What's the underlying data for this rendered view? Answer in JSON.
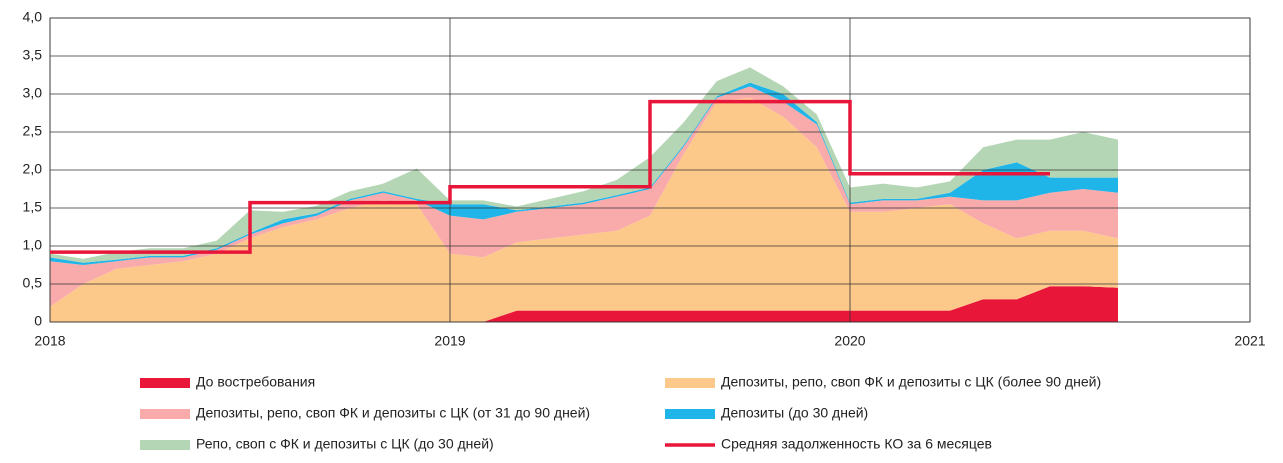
{
  "chart_data": {
    "type": "stacked-area",
    "x": [
      2018,
      2018.083,
      2018.167,
      2018.25,
      2018.333,
      2018.417,
      2018.5,
      2018.583,
      2018.667,
      2018.75,
      2018.833,
      2018.917,
      2019,
      2019.083,
      2019.167,
      2019.25,
      2019.333,
      2019.417,
      2019.5,
      2019.583,
      2019.667,
      2019.75,
      2019.833,
      2019.917,
      2020,
      2020.083,
      2020.167,
      2020.25,
      2020.333,
      2020.417,
      2020.5,
      2020.583,
      2020.67
    ],
    "series": [
      {
        "name": "До востребования",
        "color": "#e8173a",
        "values": [
          0,
          0,
          0,
          0,
          0,
          0,
          0,
          0,
          0,
          0,
          0,
          0,
          0,
          0,
          0.15,
          0.15,
          0.15,
          0.15,
          0.15,
          0.15,
          0.15,
          0.15,
          0.15,
          0.15,
          0.15,
          0.15,
          0.15,
          0.15,
          0.3,
          0.3,
          0.47,
          0.47,
          0.45
        ]
      },
      {
        "name": "Депозиты, репо, своп ФК и депозиты с ЦК (более 90 дней)",
        "color": "#fdc98a",
        "values": [
          0.2,
          0.5,
          0.7,
          0.75,
          0.8,
          0.9,
          1.1,
          1.25,
          1.35,
          1.5,
          1.6,
          1.55,
          0.9,
          0.85,
          0.9,
          0.95,
          1.0,
          1.05,
          1.25,
          2.05,
          2.75,
          2.8,
          2.55,
          2.15,
          1.3,
          1.3,
          1.35,
          1.4,
          1.0,
          0.8,
          0.73,
          0.73,
          0.65
        ]
      },
      {
        "name": "Депозиты, репо, своп ФК и депозиты с ЦК (от 31 до 90 дней)",
        "color": "#f9abab",
        "values": [
          0.6,
          0.25,
          0.1,
          0.1,
          0.05,
          0.05,
          0.05,
          0.05,
          0.05,
          0.1,
          0.1,
          0.05,
          0.5,
          0.5,
          0.4,
          0.4,
          0.4,
          0.45,
          0.35,
          0.1,
          0.05,
          0.15,
          0.2,
          0.3,
          0.1,
          0.15,
          0.1,
          0.1,
          0.3,
          0.5,
          0.5,
          0.55,
          0.6
        ]
      },
      {
        "name": "Депозиты (до 30 дней)",
        "color": "#1fb5e8",
        "values": [
          0.05,
          0.03,
          0.02,
          0.02,
          0.02,
          0.02,
          0.02,
          0.05,
          0.03,
          0.02,
          0.02,
          0.02,
          0.15,
          0.2,
          0.02,
          0.02,
          0.02,
          0.02,
          0.02,
          0.02,
          0.02,
          0.05,
          0.1,
          0.03,
          0.02,
          0.02,
          0.02,
          0.05,
          0.4,
          0.5,
          0.2,
          0.15,
          0.2
        ]
      },
      {
        "name": "Репо, своп с ФК и депозиты с ЦК (до 30 дней)",
        "color": "#b5d6b5",
        "values": [
          0.05,
          0.05,
          0.1,
          0.1,
          0.1,
          0.1,
          0.3,
          0.1,
          0.1,
          0.1,
          0.1,
          0.4,
          0.05,
          0.05,
          0.05,
          0.1,
          0.15,
          0.2,
          0.4,
          0.3,
          0.2,
          0.2,
          0.1,
          0.1,
          0.2,
          0.2,
          0.15,
          0.15,
          0.3,
          0.3,
          0.5,
          0.6,
          0.5
        ]
      },
      {
        "name": "Средняя задолженность КО за 6 месяцев",
        "color": "#e8173a",
        "kind": "line",
        "x": [
          2018,
          2018.5,
          2018.5,
          2019,
          2019,
          2019.5,
          2019.5,
          2020,
          2020,
          2020.5
        ],
        "values": [
          0.92,
          0.92,
          1.57,
          1.57,
          1.78,
          1.78,
          2.9,
          2.9,
          1.95,
          1.95
        ]
      }
    ],
    "xlim": [
      2018,
      2021
    ],
    "xticks": [
      2018,
      2019,
      2020,
      2021
    ],
    "ylim": [
      0,
      4
    ],
    "yticks": [
      0,
      {
        "value": 0.5,
        "label": "0,5"
      },
      {
        "value": 1,
        "label": "1,0"
      },
      {
        "value": 1.5,
        "label": "1,5"
      },
      {
        "value": 2,
        "label": "2,0"
      },
      {
        "value": 2.5,
        "label": "2,5"
      },
      {
        "value": 3,
        "label": "3,0"
      },
      {
        "value": 3.5,
        "label": "3,5"
      },
      {
        "value": 4,
        "label": "4,0"
      }
    ],
    "grid": true
  }
}
